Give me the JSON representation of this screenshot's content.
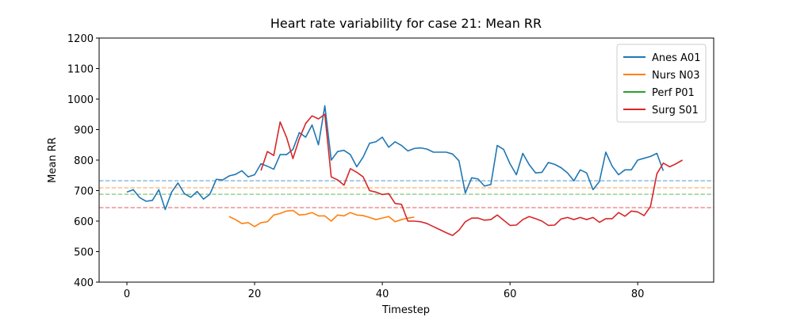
{
  "chart_data": {
    "type": "line",
    "title": "Heart rate variability for case 21: Mean RR",
    "x_label": "Timestep",
    "y_label": "Mean RR",
    "xlim": [
      -4.35,
      91.9
    ],
    "ylim": [
      400,
      1200
    ],
    "xticks": [
      0,
      20,
      40,
      60,
      80
    ],
    "yticks": [
      400,
      500,
      600,
      700,
      800,
      900,
      1000,
      1100,
      1200
    ],
    "legend": "upper right",
    "series": [
      {
        "name": "Anes A01",
        "color": "#1f77b4",
        "mean": 732,
        "x": [
          0,
          1,
          2,
          3,
          4,
          5,
          6,
          7,
          8,
          9,
          10,
          11,
          12,
          13,
          14,
          15,
          16,
          17,
          18,
          19,
          20,
          21,
          22,
          23,
          24,
          25,
          26,
          27,
          28,
          29,
          30,
          31,
          32,
          33,
          34,
          35,
          36,
          37,
          38,
          39,
          40,
          41,
          42,
          43,
          44,
          45,
          46,
          47,
          48,
          49,
          50,
          51,
          52,
          53,
          54,
          55,
          56,
          57,
          58,
          59,
          60,
          61,
          62,
          63,
          64,
          65,
          66,
          67,
          68,
          69,
          70,
          71,
          72,
          73,
          74,
          75,
          76,
          77,
          78,
          79,
          80,
          81,
          82,
          83,
          84
        ],
        "values": [
          695,
          703,
          677,
          665,
          668,
          703,
          638,
          695,
          725,
          690,
          678,
          697,
          672,
          688,
          737,
          735,
          748,
          753,
          765,
          745,
          752,
          788,
          780,
          770,
          818,
          818,
          835,
          890,
          875,
          915,
          850,
          978,
          800,
          828,
          832,
          818,
          778,
          810,
          855,
          860,
          875,
          842,
          860,
          848,
          830,
          838,
          840,
          836,
          826,
          826,
          826,
          820,
          798,
          692,
          742,
          738,
          715,
          720,
          848,
          835,
          788,
          752,
          822,
          785,
          758,
          760,
          792,
          786,
          775,
          758,
          732,
          768,
          758,
          703,
          730,
          826,
          780,
          752,
          768,
          768,
          800,
          806,
          812,
          822,
          765
        ]
      },
      {
        "name": "Nurs N03",
        "color": "#ff7f0e",
        "mean": 709,
        "x": [
          16,
          17,
          18,
          19,
          20,
          21,
          22,
          23,
          24,
          25,
          26,
          27,
          28,
          29,
          30,
          31,
          32,
          33,
          34,
          35,
          36,
          37,
          38,
          39,
          40,
          41,
          42,
          43,
          44,
          45
        ],
        "values": [
          615,
          605,
          592,
          595,
          582,
          595,
          598,
          620,
          625,
          633,
          635,
          620,
          622,
          628,
          617,
          617,
          600,
          620,
          617,
          628,
          620,
          618,
          612,
          605,
          610,
          615,
          598,
          605,
          610,
          613
        ]
      },
      {
        "name": "Perf P01",
        "color": "#2ca02c",
        "mean": 688,
        "x": [],
        "values": []
      },
      {
        "name": "Surg S01",
        "color": "#d62728",
        "mean": 644,
        "x": [
          21,
          22,
          23,
          24,
          25,
          26,
          27,
          28,
          29,
          30,
          31,
          32,
          33,
          34,
          35,
          36,
          37,
          38,
          39,
          40,
          41,
          42,
          43,
          44,
          45,
          46,
          47,
          48,
          49,
          50,
          51,
          52,
          53,
          54,
          55,
          56,
          57,
          58,
          59,
          60,
          61,
          62,
          63,
          64,
          65,
          66,
          67,
          68,
          69,
          70,
          71,
          72,
          73,
          74,
          75,
          76,
          77,
          78,
          79,
          80,
          81,
          82,
          83,
          84,
          85,
          86,
          87
        ],
        "values": [
          766,
          828,
          815,
          925,
          875,
          805,
          870,
          920,
          945,
          935,
          950,
          745,
          735,
          718,
          772,
          760,
          745,
          700,
          695,
          687,
          690,
          658,
          655,
          600,
          600,
          598,
          592,
          582,
          572,
          562,
          553,
          570,
          598,
          610,
          610,
          603,
          605,
          620,
          603,
          586,
          587,
          605,
          615,
          608,
          600,
          586,
          587,
          607,
          612,
          605,
          612,
          605,
          612,
          596,
          608,
          608,
          628,
          616,
          633,
          630,
          618,
          648,
          755,
          790,
          778,
          788,
          800
        ]
      }
    ]
  }
}
